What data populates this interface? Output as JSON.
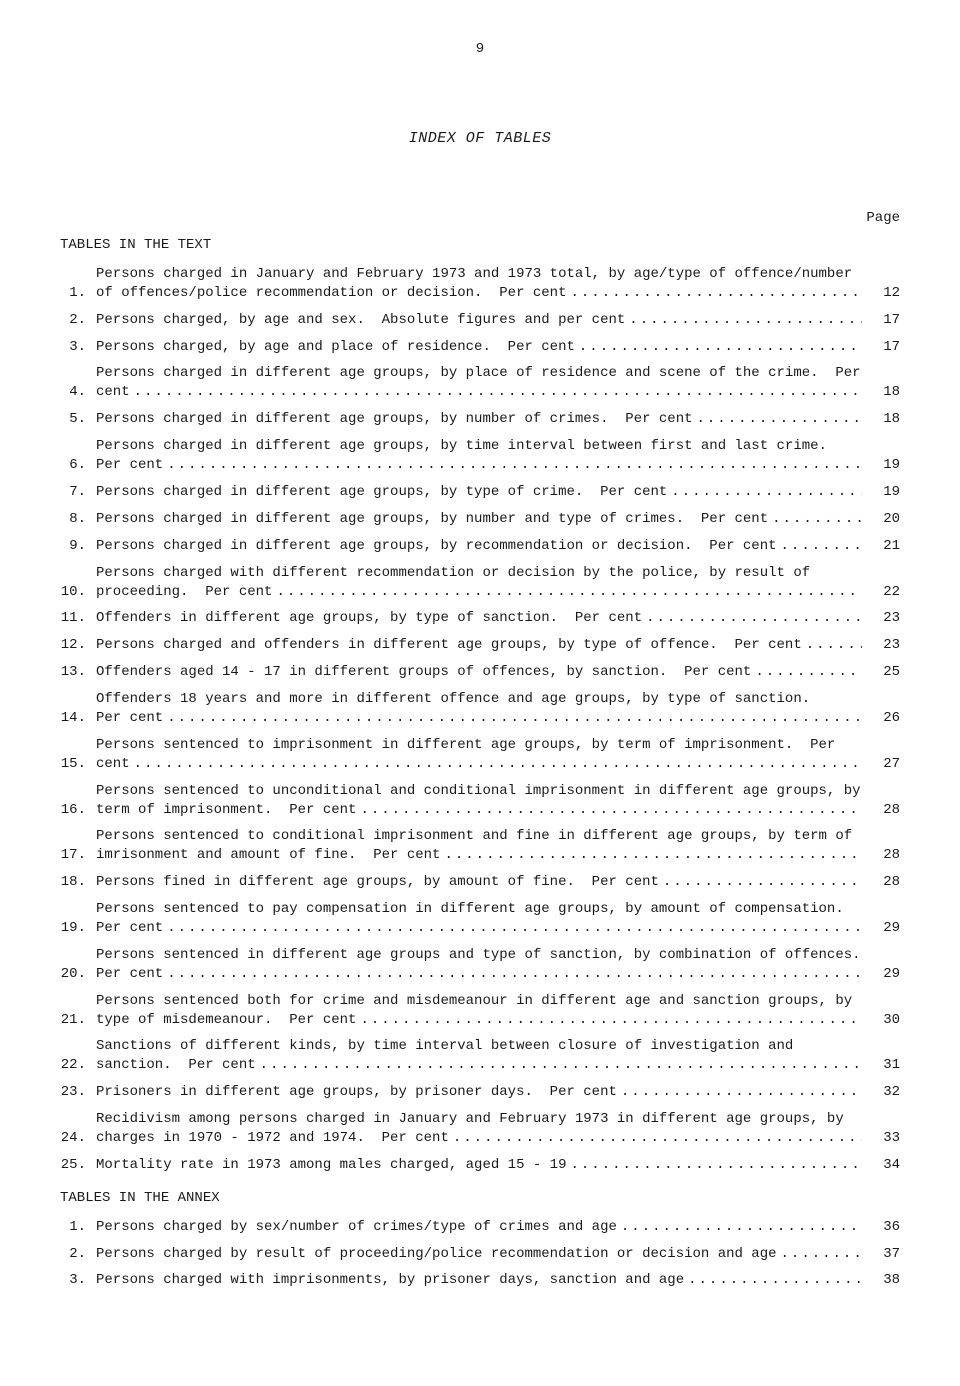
{
  "page_number": "9",
  "title": "INDEX OF TABLES",
  "page_header": "Page",
  "section1": {
    "heading": "TABLES IN THE TEXT",
    "entries": [
      {
        "n": "1.",
        "lines": [
          "Persons charged in January and February 1973 and 1973 total, by age/type of offence/number",
          "of offences/police recommendation or decision.  Per cent"
        ],
        "p": "12"
      },
      {
        "n": "2.",
        "lines": [
          "Persons charged, by age and sex.  Absolute figures and per cent"
        ],
        "p": "17"
      },
      {
        "n": "3.",
        "lines": [
          "Persons charged, by age and place of residence.  Per cent"
        ],
        "p": "17"
      },
      {
        "n": "4.",
        "lines": [
          "Persons charged in different age groups, by place of residence and scene of the crime.  Per",
          "cent"
        ],
        "p": "18"
      },
      {
        "n": "5.",
        "lines": [
          "Persons charged in different age groups, by number of crimes.  Per cent"
        ],
        "p": "18"
      },
      {
        "n": "6.",
        "lines": [
          "Persons charged in different age groups, by time interval between first and last crime.",
          "Per cent"
        ],
        "p": "19"
      },
      {
        "n": "7.",
        "lines": [
          "Persons charged in different age groups, by type of crime.  Per cent"
        ],
        "p": "19"
      },
      {
        "n": "8.",
        "lines": [
          "Persons charged in different age groups, by number and type of crimes.  Per cent"
        ],
        "p": "20"
      },
      {
        "n": "9.",
        "lines": [
          "Persons charged in different age groups, by recommendation or decision.  Per cent"
        ],
        "p": "21"
      },
      {
        "n": "10.",
        "lines": [
          "Persons charged with different recommendation or decision by the police, by result of",
          "proceeding.  Per cent"
        ],
        "p": "22"
      },
      {
        "n": "11.",
        "lines": [
          "Offenders in different age groups, by type of sanction.  Per cent"
        ],
        "p": "23"
      },
      {
        "n": "12.",
        "lines": [
          "Persons charged and offenders in different age groups, by type of offence.  Per cent"
        ],
        "p": "23"
      },
      {
        "n": "13.",
        "lines": [
          "Offenders aged 14 - 17 in different groups of offences, by sanction.  Per cent"
        ],
        "p": "25"
      },
      {
        "n": "14.",
        "lines": [
          "Offenders 18 years and more in different offence and age groups, by type of sanction.",
          "Per cent"
        ],
        "p": "26"
      },
      {
        "n": "15.",
        "lines": [
          "Persons sentenced to imprisonment in different age groups, by term of imprisonment.  Per",
          "cent"
        ],
        "p": "27"
      },
      {
        "n": "16.",
        "lines": [
          "Persons sentenced to unconditional and conditional imprisonment in different age groups, by",
          "term of imprisonment.  Per cent"
        ],
        "p": "28"
      },
      {
        "n": "17.",
        "lines": [
          "Persons sentenced to conditional imprisonment and fine in different age groups, by term of",
          "imrisonment and amount of fine.  Per cent"
        ],
        "p": "28"
      },
      {
        "n": "18.",
        "lines": [
          "Persons fined in different age groups, by amount of fine.  Per cent"
        ],
        "p": "28"
      },
      {
        "n": "19.",
        "lines": [
          "Persons sentenced to pay compensation in different age groups, by amount of compensation.",
          "Per cent"
        ],
        "p": "29"
      },
      {
        "n": "20.",
        "lines": [
          "Persons sentenced in different age groups and type of sanction, by combination of offences.",
          "Per cent"
        ],
        "p": "29"
      },
      {
        "n": "21.",
        "lines": [
          "Persons sentenced both for crime and misdemeanour in different age and sanction groups, by",
          "type of misdemeanour.  Per cent"
        ],
        "p": "30"
      },
      {
        "n": "22.",
        "lines": [
          "Sanctions of different kinds, by time interval between closure of investigation and",
          "sanction.  Per cent"
        ],
        "p": "31"
      },
      {
        "n": "23.",
        "lines": [
          "Prisoners in different age groups, by prisoner days.  Per cent"
        ],
        "p": "32"
      },
      {
        "n": "24.",
        "lines": [
          "Recidivism among persons charged in January and February 1973 in different age groups, by",
          "charges in 1970 - 1972 and 1974.  Per cent"
        ],
        "p": "33"
      },
      {
        "n": "25.",
        "lines": [
          "Mortality rate in 1973 among males charged, aged 15 - 19"
        ],
        "p": "34"
      }
    ]
  },
  "section2": {
    "heading": "TABLES IN THE ANNEX",
    "entries": [
      {
        "n": "1.",
        "lines": [
          "Persons charged by sex/number of crimes/type of crimes and age"
        ],
        "p": "36"
      },
      {
        "n": "2.",
        "lines": [
          "Persons charged by result of proceeding/police recommendation or decision and age"
        ],
        "p": "37"
      },
      {
        "n": "3.",
        "lines": [
          "Persons charged with imprisonments, by prisoner days, sanction and age"
        ],
        "p": "38"
      }
    ]
  }
}
